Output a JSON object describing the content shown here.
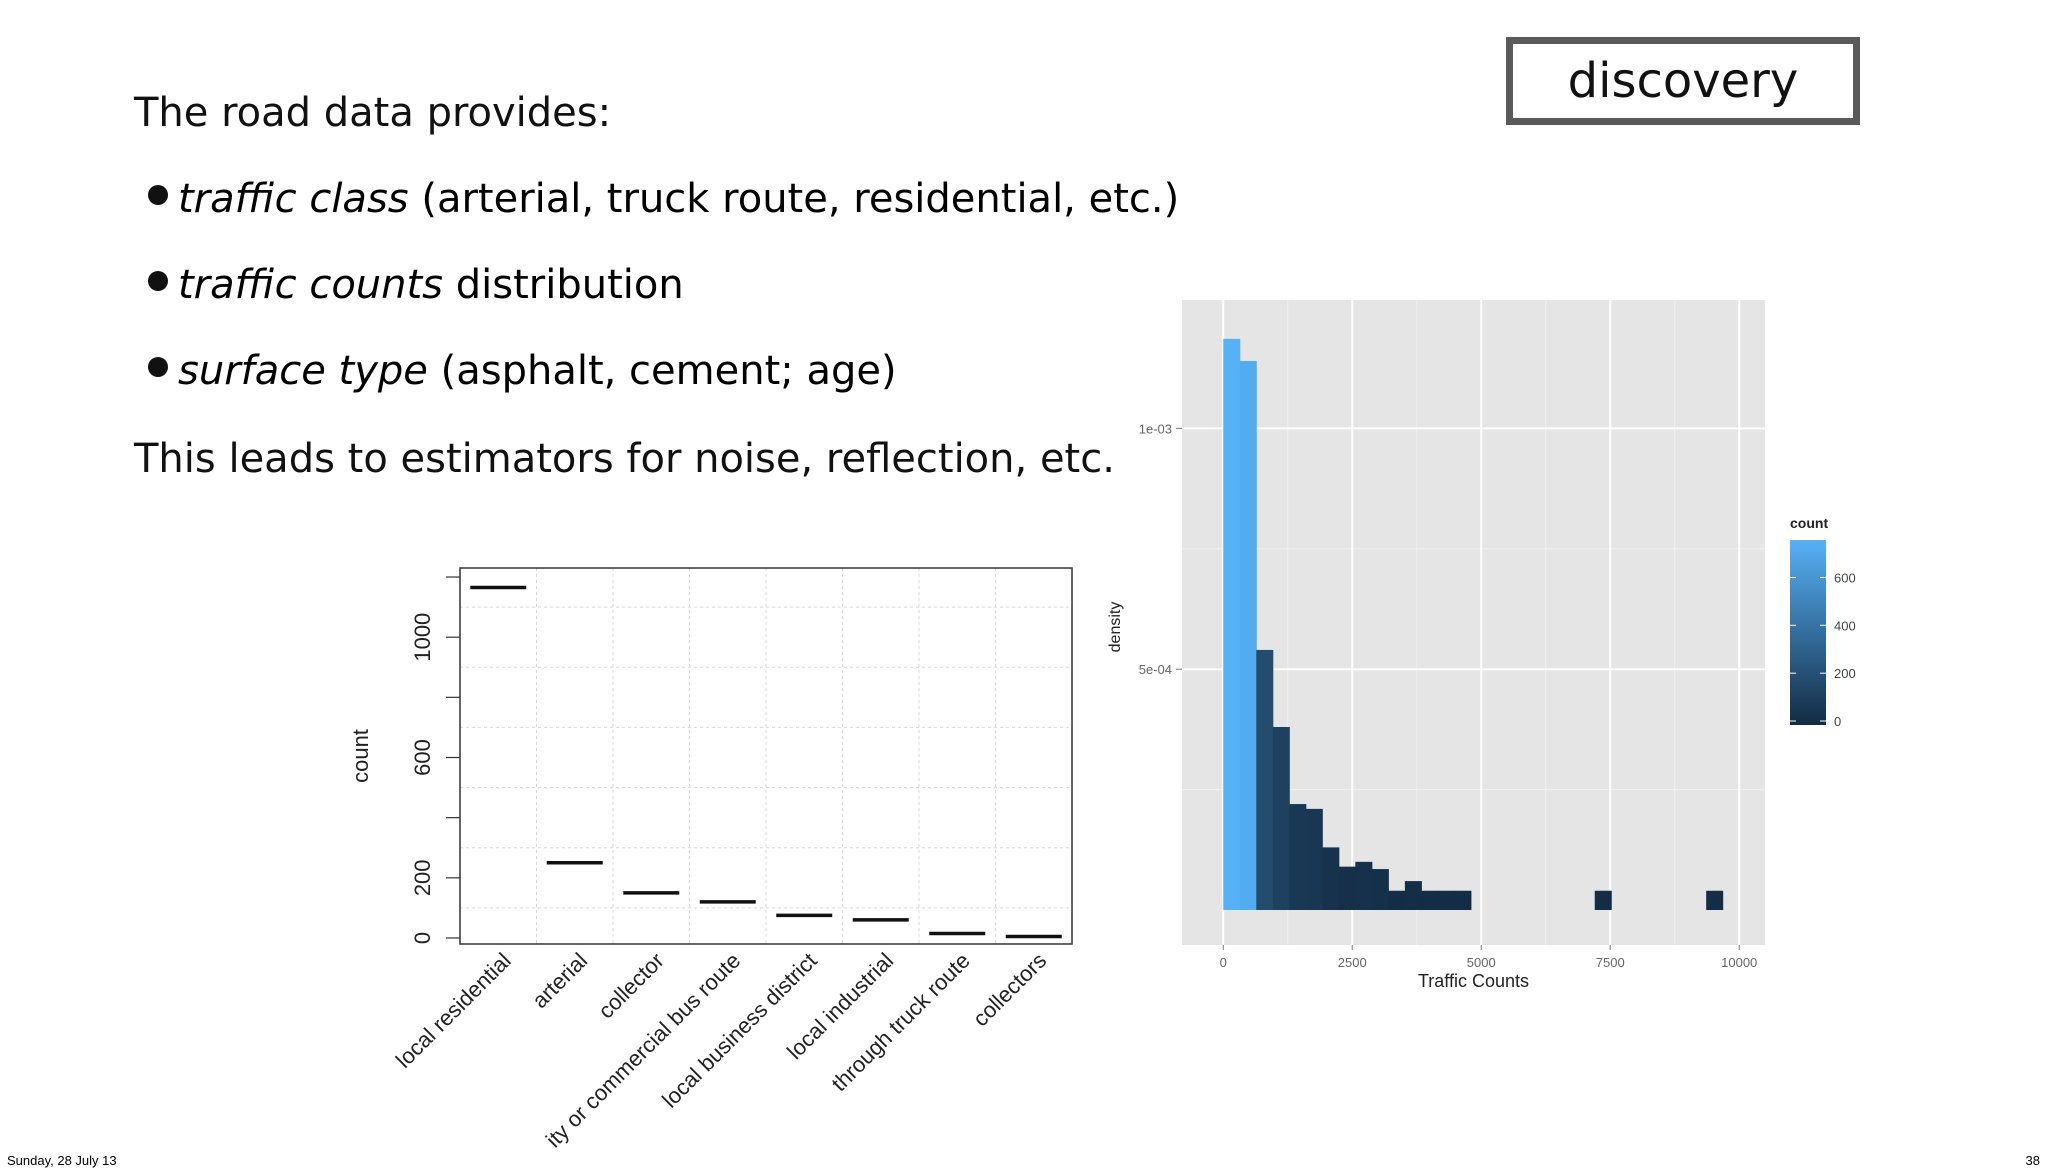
{
  "slide": {
    "tag": "discovery",
    "heading": "The road data provides:",
    "bullets": [
      {
        "emph": "traffic class",
        "rest": " (arterial, truck route, residential, etc.)"
      },
      {
        "emph": "traffic counts",
        "rest": " distribution"
      },
      {
        "emph": "surface type",
        "rest": " (asphalt, cement; age)"
      }
    ],
    "conclusion": "This leads to estimators for noise, reflection, etc.",
    "footer_date": "Sunday, 28 July 13",
    "footer_page": "38"
  },
  "chart_data": [
    {
      "type": "bar",
      "xlabel": "",
      "ylabel": "count",
      "ylim": [
        0,
        1200
      ],
      "yticks": [
        0,
        200,
        600,
        1000
      ],
      "grid": true,
      "categories": [
        "local residential",
        "arterial",
        "collector",
        "city or commercial bus route",
        "local business district",
        "local industrial",
        "through truck route",
        "collectors"
      ],
      "visible_tick_labels": [
        "local residential",
        "arterial",
        "collector",
        "ity or commercial bus route",
        "local business district",
        "local industrial",
        "through truck route",
        "collectors"
      ],
      "values": [
        1165,
        250,
        150,
        120,
        75,
        60,
        15,
        5
      ]
    },
    {
      "type": "bar",
      "xlabel": "Traffic Counts",
      "ylabel": "density",
      "xlim": [
        -800,
        10500
      ],
      "xticks": [
        0,
        2500,
        5000,
        7500,
        10000
      ],
      "ytick_labels": [
        "5e-04",
        "1e-03"
      ],
      "grid": true,
      "legend": {
        "title": "count",
        "position": "right",
        "ticks": [
          0,
          200,
          400,
          600
        ],
        "low_color": "#132B43",
        "high_color": "#56B1F7"
      },
      "bins": [
        {
          "x0": 0,
          "x1": 320,
          "density": 0.001186,
          "count": 740
        },
        {
          "x0": 320,
          "x1": 640,
          "density": 0.00114,
          "count": 711
        },
        {
          "x0": 640,
          "x1": 960,
          "density": 0.00054,
          "count": 180
        },
        {
          "x0": 960,
          "x1": 1280,
          "density": 0.00038,
          "count": 120
        },
        {
          "x0": 1280,
          "x1": 1600,
          "density": 0.00022,
          "count": 70
        },
        {
          "x0": 1600,
          "x1": 1920,
          "density": 0.00021,
          "count": 65
        },
        {
          "x0": 1920,
          "x1": 2240,
          "density": 0.00013,
          "count": 40
        },
        {
          "x0": 2240,
          "x1": 2560,
          "density": 9e-05,
          "count": 28
        },
        {
          "x0": 2560,
          "x1": 2880,
          "density": 0.0001,
          "count": 31
        },
        {
          "x0": 2880,
          "x1": 3200,
          "density": 8.5e-05,
          "count": 26
        },
        {
          "x0": 3200,
          "x1": 3520,
          "density": 4e-05,
          "count": 12
        },
        {
          "x0": 3520,
          "x1": 3840,
          "density": 6e-05,
          "count": 18
        },
        {
          "x0": 3840,
          "x1": 4160,
          "density": 4e-05,
          "count": 12
        },
        {
          "x0": 4160,
          "x1": 4480,
          "density": 4e-05,
          "count": 12
        },
        {
          "x0": 4480,
          "x1": 4800,
          "density": 4e-05,
          "count": 12
        },
        {
          "x0": 7200,
          "x1": 7520,
          "density": 4e-05,
          "count": 12
        },
        {
          "x0": 9360,
          "x1": 9680,
          "density": 4e-05,
          "count": 12
        }
      ]
    }
  ]
}
